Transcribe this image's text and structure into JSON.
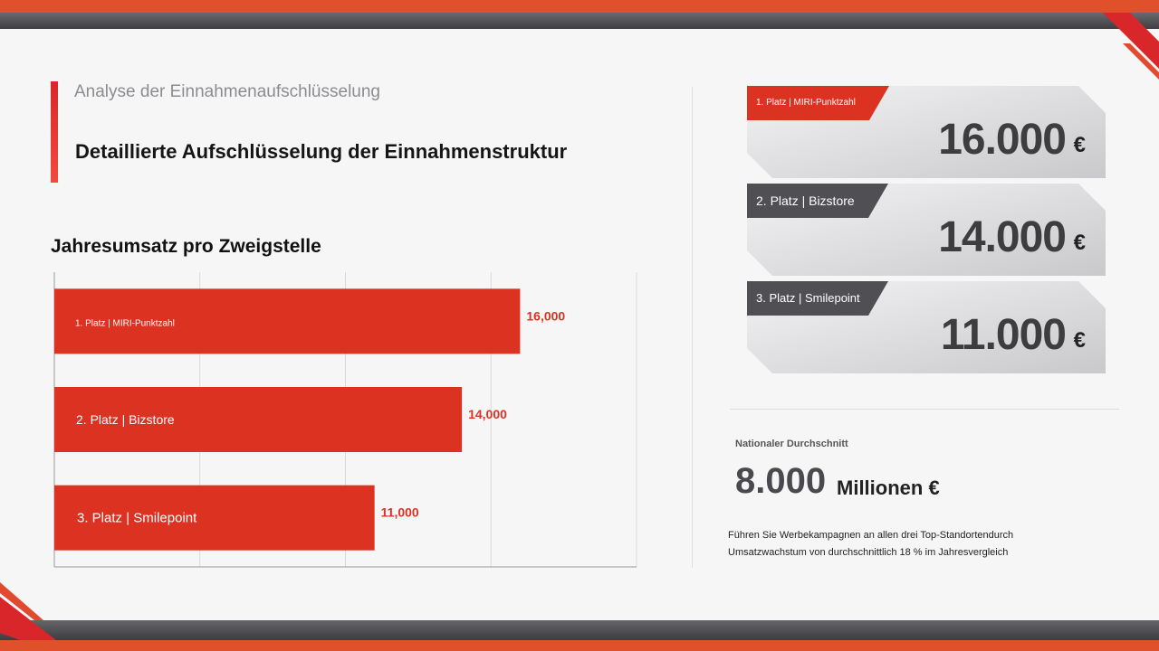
{
  "header": {
    "section_label": "Analyse der Einnahmenaufschlüsselung",
    "title": "Detaillierte Aufschlüsselung der Einnahmenstruktur"
  },
  "chart_heading": "Jahresumsatz pro Zweigstelle",
  "chart_data": {
    "type": "bar",
    "orientation": "horizontal",
    "title": "Jahresumsatz pro Zweigstelle",
    "categories": [
      "1. Platz | MIRI-Punktzahl",
      "2. Platz | Bizstore",
      "3. Platz | Smilepoint"
    ],
    "values": [
      16000,
      14000,
      11000
    ],
    "value_labels": [
      "16,000",
      "14,000",
      "11,000"
    ],
    "xlim": [
      0,
      20000
    ],
    "grid": true,
    "legend": "none",
    "bar_color": "#dc3222"
  },
  "cards": [
    {
      "tag": "1. Platz | MIRI-Punktzahl",
      "value": "16.000",
      "unit": "€",
      "tag_color": "#dc3222"
    },
    {
      "tag": "2. Platz | Bizstore",
      "value": "14.000",
      "unit": "€",
      "tag_color": "#505054"
    },
    {
      "tag": "3. Platz | Smilepoint",
      "value": "11.000",
      "unit": "€",
      "tag_color": "#505054"
    }
  ],
  "average": {
    "label": "Nationaler Durchschnitt",
    "value": "8.000",
    "unit": "Millionen €"
  },
  "footnote": {
    "line1": "Führen Sie Werbekampagnen an allen drei Top-Standortendurch",
    "line2": "Umsatzwachstum von durchschnittlich 18 % im Jahresvergleich"
  },
  "colors": {
    "accent": "#dc3222",
    "band_orange": "#e0512b",
    "band_gray": "#4a4a4e"
  }
}
